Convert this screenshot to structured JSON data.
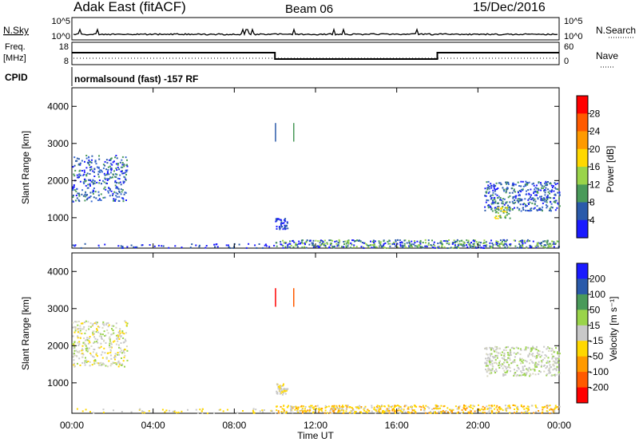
{
  "header": {
    "station": "Adak East (fitACF)",
    "beam": "Beam 06",
    "date": "15/Dec/2016"
  },
  "nsky_panel": {
    "left_label": "N.Sky",
    "left_ticks": [
      "10^5",
      "10^0"
    ],
    "right_ticks": [
      "10^5",
      "10^0"
    ],
    "right_label": "N.Search"
  },
  "freq_panel": {
    "left_label_1": "Freq.",
    "left_label_2": "[MHz]",
    "left_ticks": [
      "18",
      "8"
    ],
    "right_ticks": [
      "60",
      "0"
    ],
    "right_label": "Nave",
    "freq_steps": [
      {
        "from_hour": 0,
        "to_hour": 10,
        "level": "high"
      },
      {
        "from_hour": 10,
        "to_hour": 18,
        "level": "low"
      },
      {
        "from_hour": 18,
        "to_hour": 24,
        "level": "high"
      }
    ]
  },
  "cpid": {
    "label": "CPID",
    "mode": "normalsound (fast) -157 RF"
  },
  "chart_data": [
    {
      "type": "heatmap",
      "name": "power",
      "ylabel": "Slant Range [km]",
      "yticks": [
        "4000",
        "3000",
        "2000",
        "1000"
      ],
      "ylim": [
        180,
        4500
      ],
      "xlim": [
        0,
        24
      ],
      "colorbar_label": "Power [dB]",
      "colorbar_ticks": [
        "28",
        "24",
        "20",
        "16",
        "12",
        "8",
        "4"
      ],
      "colorbar_colors": [
        "#ff0000",
        "#ff5a00",
        "#ff9a00",
        "#ffd800",
        "#9ad44a",
        "#4a9a5a",
        "#2a5aaa",
        "#1a1aff"
      ],
      "scatter_regions": [
        {
          "t0": 0.0,
          "t1": 2.7,
          "r0": 1450,
          "r1": 2700,
          "density": 320,
          "colors": [
            "#2a5aaa",
            "#1a1aff",
            "#3a6ad0",
            "#4a9a5a"
          ]
        },
        {
          "t0": 20.3,
          "t1": 24.0,
          "r0": 1200,
          "r1": 2000,
          "density": 380,
          "colors": [
            "#2a5aaa",
            "#1a1aff",
            "#3a6ad0",
            "#4a9a5a"
          ]
        },
        {
          "t0": 20.8,
          "t1": 21.6,
          "r0": 1000,
          "r1": 1300,
          "density": 40,
          "colors": [
            "#ffd800",
            "#9ad44a",
            "#4a9a5a"
          ]
        },
        {
          "t0": 10.0,
          "t1": 10.6,
          "r0": 700,
          "r1": 1000,
          "density": 45,
          "colors": [
            "#2a5aaa",
            "#1a1aff"
          ]
        },
        {
          "t0": 10.0,
          "t1": 24.0,
          "r0": 200,
          "r1": 420,
          "density": 520,
          "colors": [
            "#2a5aaa",
            "#1a1aff",
            "#4a9a5a",
            "#9ad44a"
          ]
        },
        {
          "t0": 0.0,
          "t1": 10.0,
          "r0": 200,
          "r1": 320,
          "density": 60,
          "colors": [
            "#2a5aaa",
            "#1a1aff"
          ]
        }
      ],
      "vertical_streaks": [
        {
          "t": 10.0,
          "r0": 3050,
          "r1": 3550,
          "color": "#2a5aaa"
        },
        {
          "t": 10.9,
          "r0": 3050,
          "r1": 3550,
          "color": "#4a9a5a"
        }
      ]
    },
    {
      "type": "heatmap",
      "name": "velocity",
      "ylabel": "Slant Range [km]",
      "yticks": [
        "4000",
        "3000",
        "2000",
        "1000"
      ],
      "ylim": [
        180,
        4500
      ],
      "xlim": [
        0,
        24
      ],
      "xticks": [
        "00:00",
        "04:00",
        "08:00",
        "12:00",
        "16:00",
        "20:00",
        "00:00"
      ],
      "xlabel": "Time UT",
      "colorbar_label": "Velocity [m s⁻¹]",
      "colorbar_ticks": [
        "200",
        "100",
        "50",
        "15",
        "-15",
        "-50",
        "-100",
        "-200"
      ],
      "colorbar_colors": [
        "#1a1aff",
        "#2a5aaa",
        "#4a9a5a",
        "#9ad44a",
        "#c8c8c8",
        "#ffd800",
        "#ff9a00",
        "#ff5a00",
        "#ff0000"
      ],
      "scatter_regions": [
        {
          "t0": 0.0,
          "t1": 2.7,
          "r0": 1450,
          "r1": 2700,
          "density": 320,
          "colors": [
            "#c8c8c8",
            "#c8c8c8",
            "#d8d8c0",
            "#ffd800",
            "#9ad44a"
          ]
        },
        {
          "t0": 20.3,
          "t1": 24.0,
          "r0": 1200,
          "r1": 2000,
          "density": 380,
          "colors": [
            "#c8c8c8",
            "#c8c8c8",
            "#d8d8c0",
            "#9ad44a"
          ]
        },
        {
          "t0": 10.0,
          "t1": 10.6,
          "r0": 700,
          "r1": 1000,
          "density": 45,
          "colors": [
            "#c8c8c8",
            "#ffd800"
          ]
        },
        {
          "t0": 10.0,
          "t1": 24.0,
          "r0": 200,
          "r1": 420,
          "density": 520,
          "colors": [
            "#ffd800",
            "#ff9a00",
            "#ffd800",
            "#c8c8c8"
          ]
        },
        {
          "t0": 0.0,
          "t1": 10.0,
          "r0": 200,
          "r1": 320,
          "density": 60,
          "colors": [
            "#ffd800",
            "#c8c8c8"
          ]
        }
      ],
      "vertical_streaks": [
        {
          "t": 10.0,
          "r0": 3050,
          "r1": 3550,
          "color": "#ff0000"
        },
        {
          "t": 10.9,
          "r0": 3050,
          "r1": 3550,
          "color": "#ff5a00"
        }
      ]
    }
  ]
}
